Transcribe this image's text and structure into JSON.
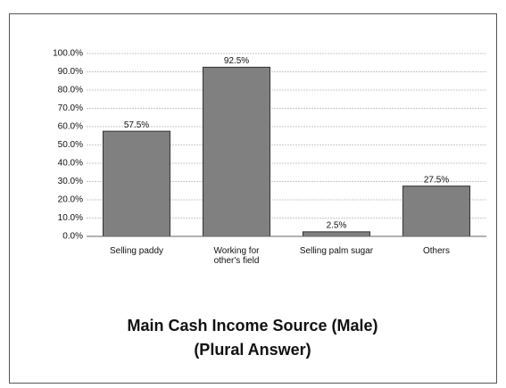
{
  "chart_data": {
    "type": "bar",
    "title": [
      "Main Cash Income Source (Male)",
      "(Plural Answer)"
    ],
    "categories": [
      "Selling paddy",
      "Working for other's field",
      "Selling palm sugar",
      "Others"
    ],
    "values": [
      57.5,
      92.5,
      2.5,
      27.5
    ],
    "value_labels": [
      "57.5%",
      "92.5%",
      "2.5%",
      "27.5%"
    ],
    "color": "#808080",
    "ylim": [
      0,
      100
    ],
    "yticks": [
      {
        "value": 0,
        "label": "0.0%"
      },
      {
        "value": 10,
        "label": "10.0%"
      },
      {
        "value": 20,
        "label": "20.0%"
      },
      {
        "value": 30,
        "label": "30.0%"
      },
      {
        "value": 40,
        "label": "40.0%"
      },
      {
        "value": 50,
        "label": "50.0%"
      },
      {
        "value": 60,
        "label": "60.0%"
      },
      {
        "value": 70,
        "label": "70.0%"
      },
      {
        "value": 80,
        "label": "80.0%"
      },
      {
        "value": 90,
        "label": "90.0%"
      },
      {
        "value": 100,
        "label": "100.0%"
      }
    ],
    "grid": true
  }
}
